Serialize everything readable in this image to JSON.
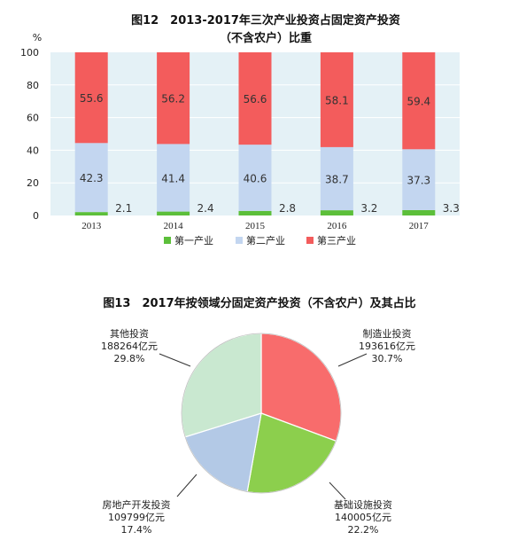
{
  "chart_data": [
    {
      "type": "bar",
      "stacked": true,
      "title": "图12　2013-2017年三次产业投资占固定资产投资",
      "subtitle": "（不含农户）比重",
      "ylabel": "%",
      "ylim": [
        0,
        100
      ],
      "yticks": [
        0,
        20,
        40,
        60,
        80,
        100
      ],
      "categories": [
        "2013",
        "2014",
        "2015",
        "2016",
        "2017"
      ],
      "grid": true,
      "legend": "bottom",
      "series": [
        {
          "name": "第一产业",
          "color": "#5cbf3a",
          "values": [
            2.1,
            2.4,
            2.8,
            3.2,
            3.3
          ]
        },
        {
          "name": "第二产业",
          "color": "#c3d6f0",
          "values": [
            42.3,
            41.4,
            40.6,
            38.7,
            37.3
          ]
        },
        {
          "name": "第三产业",
          "color": "#f35c5c",
          "values": [
            55.6,
            56.2,
            56.6,
            58.1,
            59.4
          ]
        }
      ]
    },
    {
      "type": "pie",
      "title": "图13　2017年按领域分固定资产投资（不含农户）及其占比",
      "slices": [
        {
          "name": "制造业投资",
          "value": 193616,
          "value_text": "193616亿元",
          "percent": 30.7,
          "percent_text": "30.7%",
          "color": "#f86c6c"
        },
        {
          "name": "基础设施投资",
          "value": 140005,
          "value_text": "140005亿元",
          "percent": 22.2,
          "percent_text": "22.2%",
          "color": "#8ccf4d"
        },
        {
          "name": "房地产开发投资",
          "value": 109799,
          "value_text": "109799亿元",
          "percent": 17.4,
          "percent_text": "17.4%",
          "color": "#b3c9e6"
        },
        {
          "name": "其他投资",
          "value": 188264,
          "value_text": "188264亿元",
          "percent": 29.8,
          "percent_text": "29.8%",
          "color": "#c9e8d0"
        }
      ]
    }
  ]
}
